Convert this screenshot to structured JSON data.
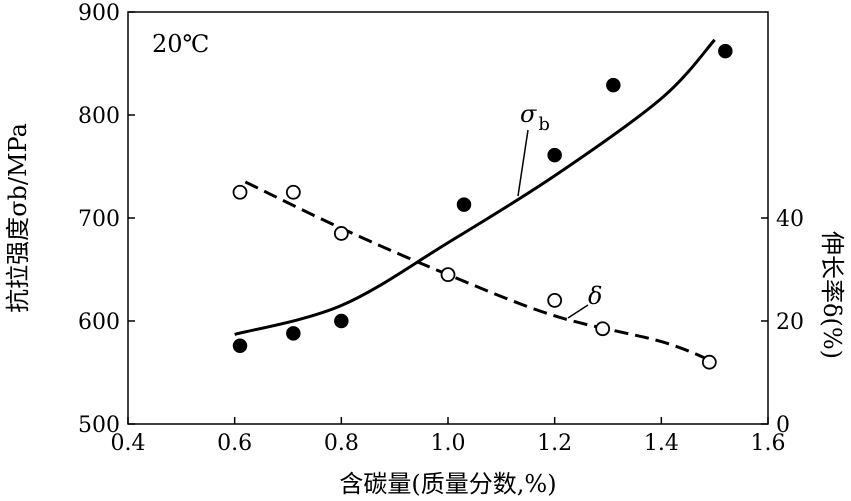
{
  "chart_data": {
    "type": "scatter",
    "title": "",
    "annotation_temperature": "20℃",
    "xlabel": "含碳量(质量分数,%)",
    "ylabel_left": "抗拉强度σb/MPa",
    "ylabel_right": "伸长率δ(%)",
    "xlim": [
      0.4,
      1.6
    ],
    "ylim_left": [
      500,
      900
    ],
    "ylim_right": [
      0,
      80
    ],
    "x_ticks": [
      "0.4",
      "0.6",
      "0.8",
      "1.0",
      "1.2",
      "1.4",
      "1.6"
    ],
    "y_left_ticks": [
      "500",
      "600",
      "700",
      "800",
      "900"
    ],
    "y_right_ticks": [
      "0",
      "20",
      "40"
    ],
    "series": [
      {
        "name": "σb",
        "label_main": "σ",
        "label_sub": "b",
        "axis": "left",
        "marker": "filled-circle",
        "x": [
          0.61,
          0.71,
          0.8,
          1.03,
          1.2,
          1.31,
          1.52
        ],
        "y": [
          576,
          588,
          600,
          713,
          761,
          829,
          862
        ],
        "fit_curve": {
          "x": [
            0.6,
            0.8,
            1.0,
            1.2,
            1.4,
            1.5
          ],
          "y": [
            587,
            615,
            676,
            741,
            816,
            873
          ]
        }
      },
      {
        "name": "δ",
        "label_main": "δ",
        "axis": "right",
        "marker": "open-circle",
        "x": [
          0.61,
          0.71,
          0.8,
          1.0,
          1.2,
          1.29,
          1.49
        ],
        "y": [
          45,
          45,
          37,
          29,
          24,
          18.5,
          12
        ],
        "fit_curve": {
          "x": [
            0.62,
            0.8,
            1.0,
            1.2,
            1.4,
            1.5
          ],
          "y": [
            47,
            38,
            29,
            21,
            16,
            12
          ]
        }
      }
    ]
  }
}
